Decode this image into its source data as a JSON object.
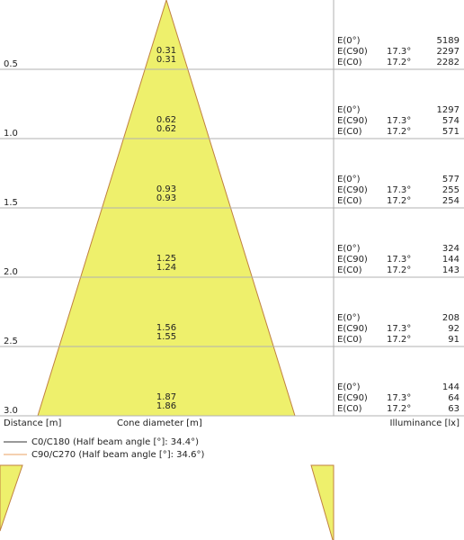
{
  "rows": [
    {
      "distance": "0.5",
      "diameters": [
        "0.31",
        "0.31"
      ],
      "illuminance": [
        {
          "label": "E(0°)",
          "value": "5189"
        },
        {
          "label": "E(C90)",
          "angle": "17.3°",
          "value": "2297"
        },
        {
          "label": "E(C0)",
          "angle": "17.2°",
          "value": "2282"
        }
      ]
    },
    {
      "distance": "1.0",
      "diameters": [
        "0.62",
        "0.62"
      ],
      "illuminance": [
        {
          "label": "E(0°)",
          "value": "1297"
        },
        {
          "label": "E(C90)",
          "angle": "17.3°",
          "value": "574"
        },
        {
          "label": "E(C0)",
          "angle": "17.2°",
          "value": "571"
        }
      ]
    },
    {
      "distance": "1.5",
      "diameters": [
        "0.93",
        "0.93"
      ],
      "illuminance": [
        {
          "label": "E(0°)",
          "value": "577"
        },
        {
          "label": "E(C90)",
          "angle": "17.3°",
          "value": "255"
        },
        {
          "label": "E(C0)",
          "angle": "17.2°",
          "value": "254"
        }
      ]
    },
    {
      "distance": "2.0",
      "diameters": [
        "1.25",
        "1.24"
      ],
      "illuminance": [
        {
          "label": "E(0°)",
          "value": "324"
        },
        {
          "label": "E(C90)",
          "angle": "17.3°",
          "value": "144"
        },
        {
          "label": "E(C0)",
          "angle": "17.2°",
          "value": "143"
        }
      ]
    },
    {
      "distance": "2.5",
      "diameters": [
        "1.56",
        "1.55"
      ],
      "illuminance": [
        {
          "label": "E(0°)",
          "value": "208"
        },
        {
          "label": "E(C90)",
          "angle": "17.3°",
          "value": "92"
        },
        {
          "label": "E(C0)",
          "angle": "17.2°",
          "value": "91"
        }
      ]
    },
    {
      "distance": "3.0",
      "diameters": [
        "1.87",
        "1.86"
      ],
      "illuminance": [
        {
          "label": "E(0°)",
          "value": "144"
        },
        {
          "label": "E(C90)",
          "angle": "17.3°",
          "value": "64"
        },
        {
          "label": "E(C0)",
          "angle": "17.2°",
          "value": "63"
        }
      ]
    }
  ],
  "footer": {
    "distance": "Distance [m]",
    "diameter": "Cone diameter [m]",
    "illuminance": "Illuminance [lx]"
  },
  "legend": [
    "C0/C180 (Half beam angle [°]: 34.4°)",
    "C90/C270 (Half beam angle [°]: 34.6°)"
  ]
}
